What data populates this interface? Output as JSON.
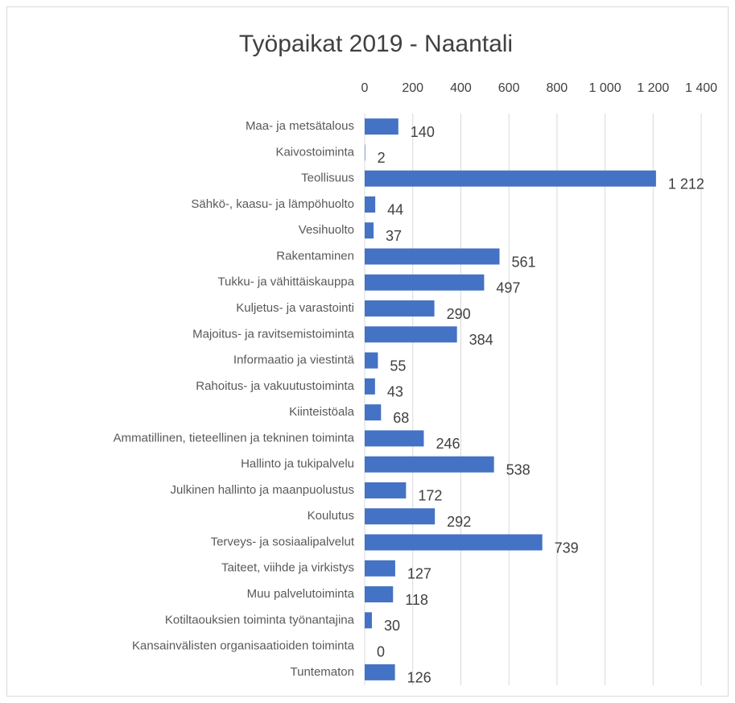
{
  "chart_data": {
    "type": "hbar",
    "title": "Työpaikat 2019 - Naantali",
    "categories": [
      "Maa- ja metsätalous",
      "Kaivostoiminta",
      "Teollisuus",
      "Sähkö-, kaasu- ja lämpöhuolto",
      "Vesihuolto",
      "Rakentaminen",
      "Tukku- ja vähittäiskauppa",
      "Kuljetus- ja varastointi",
      "Majoitus- ja ravitsemistoiminta",
      "Informaatio ja viestintä",
      "Rahoitus- ja vakuutustoiminta",
      "Kiinteistöala",
      "Ammatillinen, tieteellinen ja tekninen toiminta",
      "Hallinto ja tukipalvelu",
      "Julkinen hallinto ja maanpuolustus",
      "Koulutus",
      "Terveys- ja sosiaalipalvelut",
      "Taiteet, viihde ja virkistys",
      "Muu palvelutoiminta",
      "Kotiltaouksien toiminta työnantajina",
      "Kansainvälisten organisaatioiden toiminta",
      "Tuntematon"
    ],
    "values": [
      140,
      2,
      1212,
      44,
      37,
      561,
      497,
      290,
      384,
      55,
      43,
      68,
      246,
      538,
      172,
      292,
      739,
      127,
      118,
      30,
      0,
      126
    ],
    "value_labels": [
      "140",
      "2",
      "1 212",
      "44",
      "37",
      "561",
      "497",
      "290",
      "384",
      "55",
      "43",
      "68",
      "246",
      "538",
      "172",
      "292",
      "739",
      "127",
      "118",
      "30",
      "0",
      "126"
    ],
    "color": "#4472c4",
    "xlim": [
      0,
      1400
    ],
    "xticks": [
      0,
      200,
      400,
      600,
      800,
      {
        "value": 1000,
        "label": "1 000"
      },
      {
        "value": 1200,
        "label": "1 200"
      },
      {
        "value": 1400,
        "label": "1 400"
      }
    ],
    "grid": true
  }
}
